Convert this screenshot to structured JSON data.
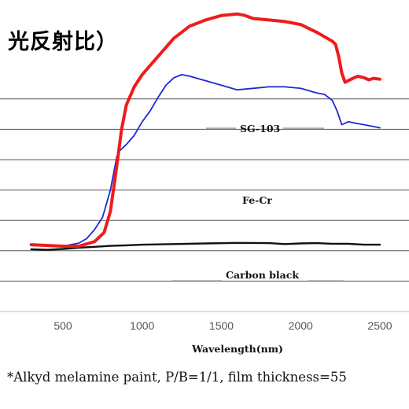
{
  "header": {
    "title": "光反射比）"
  },
  "footnote": "*Alkyd melamine paint, P/B=1/1, film thickness=55",
  "chart_data": {
    "type": "line",
    "title": "光反射比）",
    "xlabel": "Wavelength(nm)",
    "ylabel": "",
    "xlim": [
      300,
      2500
    ],
    "x_ticks": [
      500,
      1000,
      1500,
      2000,
      2500
    ],
    "grid": "horizontal",
    "legend": "inline",
    "series": [
      {
        "name": "SG-103",
        "color": "#ee1c1c",
        "points": [
          [
            300,
            22
          ],
          [
            500,
            21.5
          ],
          [
            600,
            21.5
          ],
          [
            700,
            23
          ],
          [
            760,
            26
          ],
          [
            800,
            33
          ],
          [
            840,
            48
          ],
          [
            870,
            60
          ],
          [
            900,
            68
          ],
          [
            950,
            74
          ],
          [
            1000,
            78
          ],
          [
            1050,
            81
          ],
          [
            1100,
            84
          ],
          [
            1150,
            87
          ],
          [
            1200,
            90
          ],
          [
            1250,
            92
          ],
          [
            1300,
            94
          ],
          [
            1400,
            96
          ],
          [
            1500,
            97.5
          ],
          [
            1600,
            98
          ],
          [
            1650,
            97.5
          ],
          [
            1700,
            96.5
          ],
          [
            1800,
            96
          ],
          [
            1900,
            95.5
          ],
          [
            2000,
            94.5
          ],
          [
            2100,
            92
          ],
          [
            2150,
            90.5
          ],
          [
            2200,
            89
          ],
          [
            2220,
            88
          ],
          [
            2240,
            84
          ],
          [
            2260,
            78.5
          ],
          [
            2280,
            75.5
          ],
          [
            2300,
            76
          ],
          [
            2330,
            76.8
          ],
          [
            2360,
            77.5
          ],
          [
            2400,
            77
          ],
          [
            2430,
            76.3
          ],
          [
            2460,
            76.8
          ],
          [
            2500,
            76.5
          ]
        ]
      },
      {
        "name": "Fe-Cr",
        "color": "#1e2ad0",
        "points": [
          [
            300,
            22
          ],
          [
            500,
            21.5
          ],
          [
            600,
            22.5
          ],
          [
            650,
            24
          ],
          [
            700,
            27
          ],
          [
            750,
            31
          ],
          [
            800,
            40
          ],
          [
            840,
            51
          ],
          [
            860,
            53
          ],
          [
            900,
            55
          ],
          [
            950,
            58
          ],
          [
            1000,
            62.5
          ],
          [
            1050,
            66
          ],
          [
            1100,
            70.5
          ],
          [
            1150,
            74.5
          ],
          [
            1200,
            77
          ],
          [
            1250,
            78
          ],
          [
            1300,
            77.5
          ],
          [
            1400,
            76
          ],
          [
            1500,
            74.5
          ],
          [
            1600,
            73
          ],
          [
            1700,
            73.5
          ],
          [
            1800,
            74
          ],
          [
            1900,
            74
          ],
          [
            2000,
            73.5
          ],
          [
            2100,
            72
          ],
          [
            2150,
            71.5
          ],
          [
            2200,
            69.5
          ],
          [
            2230,
            66
          ],
          [
            2260,
            61.5
          ],
          [
            2300,
            62.5
          ],
          [
            2350,
            62
          ],
          [
            2400,
            61.5
          ],
          [
            2450,
            61
          ],
          [
            2500,
            60.5
          ]
        ]
      },
      {
        "name": "Carbon black",
        "color": "#111111",
        "points": [
          [
            300,
            20.5
          ],
          [
            400,
            20.3
          ],
          [
            500,
            20.6
          ],
          [
            600,
            21
          ],
          [
            700,
            21.3
          ],
          [
            800,
            21.6
          ],
          [
            900,
            21.8
          ],
          [
            1000,
            22
          ],
          [
            1200,
            22.2
          ],
          [
            1400,
            22.4
          ],
          [
            1600,
            22.6
          ],
          [
            1800,
            22.5
          ],
          [
            1900,
            22.2
          ],
          [
            2000,
            22.4
          ],
          [
            2100,
            22.5
          ],
          [
            2200,
            22.3
          ],
          [
            2300,
            22.3
          ],
          [
            2400,
            22
          ],
          [
            2500,
            22
          ]
        ]
      }
    ],
    "series_labels": [
      "SG-103",
      "Fe-Cr",
      "Carbon black"
    ]
  }
}
